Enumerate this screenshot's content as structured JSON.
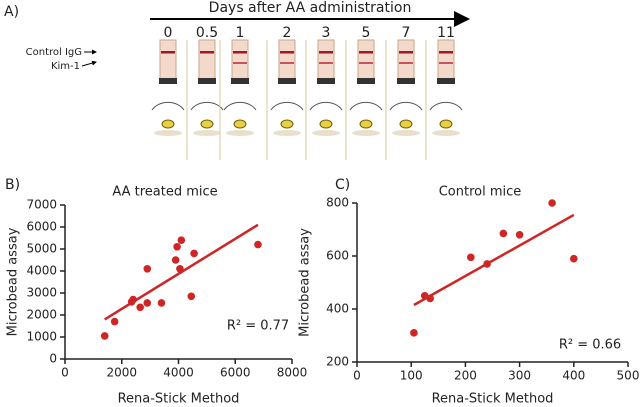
{
  "panel_a": {
    "label": "A)",
    "axis_title": "Days after AA administration",
    "days": [
      "0",
      "0.5",
      "1",
      "2",
      "3",
      "5",
      "7",
      "11"
    ],
    "band_labels": [
      "Control IgG",
      "Kim-1"
    ]
  },
  "chart_data": [
    {
      "type": "scatter",
      "panel_label": "B)",
      "title": "AA treated mice",
      "x_label": "Rena-Stick Method",
      "y_label": "Microbead assay",
      "color": "#d02525",
      "x": [
        1400,
        1750,
        2350,
        2400,
        2650,
        2900,
        2900,
        3400,
        3900,
        3950,
        4050,
        4100,
        4450,
        4550,
        6800
      ],
      "values": [
        1050,
        1700,
        2600,
        2700,
        2350,
        4100,
        2550,
        2550,
        4500,
        5100,
        4100,
        5400,
        2850,
        4800,
        5200
      ],
      "fit_line": {
        "x": [
          1400,
          6800
        ],
        "y": [
          1800,
          6100
        ]
      },
      "annotation": "R² = 0.77",
      "xlim": [
        0,
        8000
      ],
      "xticks": [
        0,
        2000,
        4000,
        6000,
        8000
      ],
      "ylim": [
        0,
        7000
      ],
      "yticks": [
        0,
        1000,
        2000,
        3000,
        4000,
        5000,
        6000,
        7000
      ]
    },
    {
      "type": "scatter",
      "panel_label": "C)",
      "title": "Control mice",
      "x_label": "Rena-Stick Method",
      "y_label": "Microbead assay",
      "color": "#d02525",
      "x": [
        105,
        125,
        135,
        210,
        240,
        270,
        300,
        360,
        400
      ],
      "values": [
        310,
        450,
        440,
        595,
        570,
        685,
        680,
        800,
        590
      ],
      "fit_line": {
        "x": [
          105,
          400
        ],
        "y": [
          415,
          755
        ]
      },
      "annotation": "R² = 0.66",
      "xlim": [
        0,
        500
      ],
      "xticks": [
        0,
        100,
        200,
        300,
        400,
        500
      ],
      "ylim": [
        200,
        800
      ],
      "yticks": [
        200,
        400,
        600,
        800
      ]
    }
  ]
}
